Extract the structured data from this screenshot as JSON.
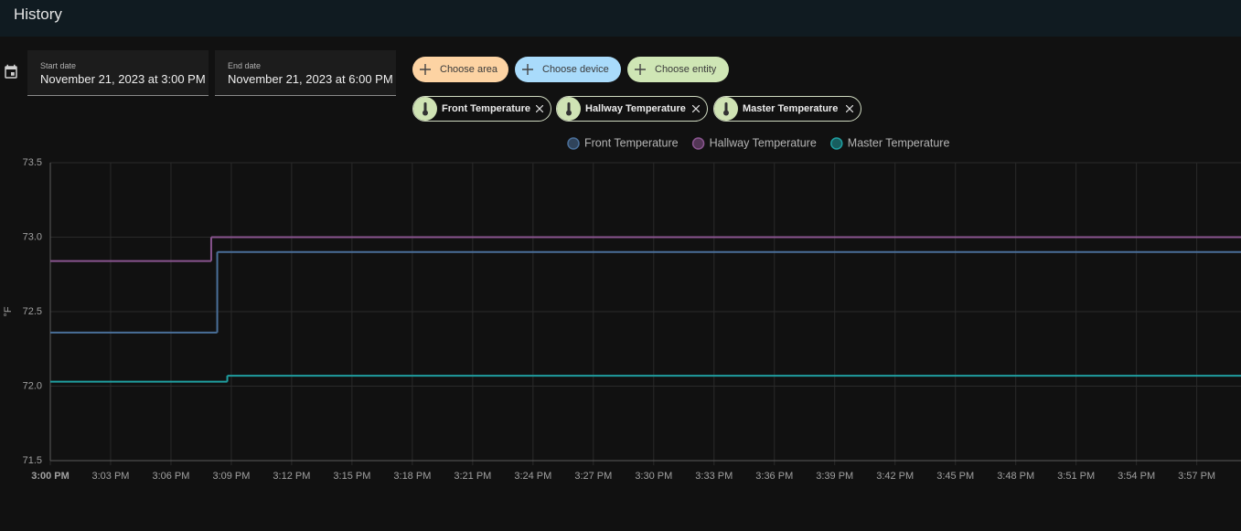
{
  "header": {
    "title": "History"
  },
  "date_range": {
    "start": {
      "label": "Start date",
      "value": "November 21, 2023 at 3:00 PM"
    },
    "end": {
      "label": "End date",
      "value": "November 21, 2023 at 6:00 PM"
    }
  },
  "filters": {
    "add": [
      "Choose area",
      "Choose device",
      "Choose entity"
    ],
    "selected": [
      "Front Temperature",
      "Hallway Temperature",
      "Master Temperature"
    ]
  },
  "chart_data": {
    "type": "line",
    "step": true,
    "grid": true,
    "y_label": "°F",
    "xlim": [
      0,
      59.2
    ],
    "xticks": [
      {
        "value": 0,
        "label": "3:00 PM"
      },
      {
        "value": 3,
        "label": "3:03 PM"
      },
      {
        "value": 6,
        "label": "3:06 PM"
      },
      {
        "value": 9,
        "label": "3:09 PM"
      },
      {
        "value": 12,
        "label": "3:12 PM"
      },
      {
        "value": 15,
        "label": "3:15 PM"
      },
      {
        "value": 18,
        "label": "3:18 PM"
      },
      {
        "value": 21,
        "label": "3:21 PM"
      },
      {
        "value": 24,
        "label": "3:24 PM"
      },
      {
        "value": 27,
        "label": "3:27 PM"
      },
      {
        "value": 30,
        "label": "3:30 PM"
      },
      {
        "value": 33,
        "label": "3:33 PM"
      },
      {
        "value": 36,
        "label": "3:36 PM"
      },
      {
        "value": 39,
        "label": "3:39 PM"
      },
      {
        "value": 42,
        "label": "3:42 PM"
      },
      {
        "value": 45,
        "label": "3:45 PM"
      },
      {
        "value": 48,
        "label": "3:48 PM"
      },
      {
        "value": 51,
        "label": "3:51 PM"
      },
      {
        "value": 54,
        "label": "3:54 PM"
      },
      {
        "value": 57,
        "label": "3:57 PM"
      }
    ],
    "ylim": [
      71.5,
      73.5
    ],
    "yticks": [
      71.5,
      {
        "value": 72,
        "label": "72.0"
      },
      72.5,
      {
        "value": 73,
        "label": "73.0"
      },
      73.5
    ],
    "series": [
      {
        "name": "Front Temperature",
        "color": "#4a6f99",
        "x": [
          0,
          8.3
        ],
        "values": [
          72.36,
          72.9
        ]
      },
      {
        "name": "Hallway Temperature",
        "color": "#8a5590",
        "x": [
          0,
          8.0
        ],
        "values": [
          72.84,
          73.0
        ]
      },
      {
        "name": "Master Temperature",
        "color": "#1f9ea0",
        "x": [
          0,
          8.8
        ],
        "values": [
          72.03,
          72.07
        ]
      }
    ]
  }
}
